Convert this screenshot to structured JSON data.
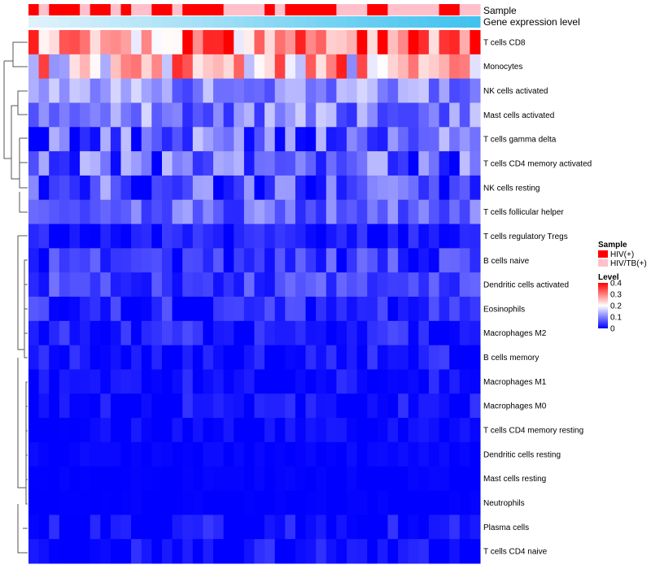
{
  "chart_data": {
    "type": "heatmap",
    "title": "",
    "row_labels": [
      "T cells CD8",
      "Monocytes",
      "NK cells activated",
      "Mast cells activated",
      "T cells gamma delta",
      "T cells CD4 memory activated",
      "NK cells resting",
      "T cells follicular helper",
      "T cells regulatory  Tregs",
      "B cells naive",
      "Dendritic cells activated",
      "Eosinophils",
      "Macrophages M2",
      "B cells memory",
      "Macrophages M1",
      "Macrophages M0",
      "T cells CD4 memory resting",
      "Dendritic cells resting",
      "Mast cells resting",
      "Neutrophils",
      "Plasma cells",
      "T cells CD4 naive"
    ],
    "n_samples": 44,
    "annotations": {
      "sample_label": "Sample",
      "gene_label": "Gene expression level",
      "sample_groups": [
        0,
        1,
        0,
        0,
        0,
        1,
        0,
        0,
        1,
        0,
        1,
        1,
        0,
        0,
        1,
        0,
        0,
        0,
        0,
        1,
        1,
        1,
        1,
        0,
        1,
        0,
        0,
        0,
        0,
        0,
        1,
        1,
        1,
        0,
        0,
        1,
        1,
        1,
        1,
        1,
        0,
        0,
        1,
        1
      ],
      "gene_gradient": [
        "#dff2fb",
        "#41c2ef"
      ]
    },
    "legend": {
      "sample": {
        "title": "Sample",
        "entries": [
          {
            "label": "HIV(+)",
            "color": "#ff0000"
          },
          {
            "label": "HIV/TB(+)",
            "color": "#ffc0cb"
          }
        ]
      },
      "level": {
        "title": "Level",
        "ticks": [
          "0.4",
          "0.3",
          "0.2",
          "0.1",
          "0"
        ],
        "tick_values": [
          0.4,
          0.3,
          0.2,
          0.1,
          0
        ],
        "range": [
          0,
          0.4
        ]
      }
    },
    "colors": {
      "low": "#0000ff",
      "mid": "#ffffff",
      "high": "#ff0000"
    },
    "row_profiles": [
      {
        "mean": 0.3,
        "spread": 0.12
      },
      {
        "mean": 0.24,
        "spread": 0.14
      },
      {
        "mean": 0.11,
        "spread": 0.06
      },
      {
        "mean": 0.1,
        "spread": 0.07
      },
      {
        "mean": 0.07,
        "spread": 0.09
      },
      {
        "mean": 0.07,
        "spread": 0.08
      },
      {
        "mean": 0.06,
        "spread": 0.08
      },
      {
        "mean": 0.08,
        "spread": 0.05
      },
      {
        "mean": 0.02,
        "spread": 0.03
      },
      {
        "mean": 0.04,
        "spread": 0.05
      },
      {
        "mean": 0.05,
        "spread": 0.04
      },
      {
        "mean": 0.03,
        "spread": 0.04
      },
      {
        "mean": 0.02,
        "spread": 0.04
      },
      {
        "mean": 0.015,
        "spread": 0.035
      },
      {
        "mean": 0.01,
        "spread": 0.03
      },
      {
        "mean": 0.01,
        "spread": 0.03
      },
      {
        "mean": 0.004,
        "spread": 0.02
      },
      {
        "mean": 0.002,
        "spread": 0.01
      },
      {
        "mean": 0.001,
        "spread": 0.005
      },
      {
        "mean": 0.0,
        "spread": 0.004
      },
      {
        "mean": 0.008,
        "spread": 0.04
      },
      {
        "mean": 0.006,
        "spread": 0.04
      }
    ]
  }
}
